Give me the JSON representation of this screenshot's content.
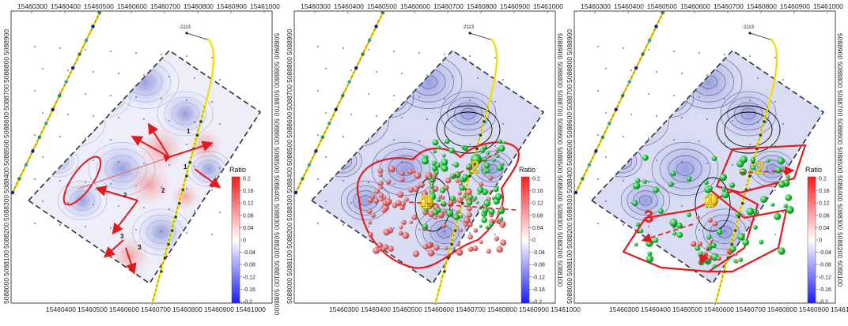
{
  "panels": [
    {
      "id": "left",
      "top_ticks": [
        "15460300",
        "15460400",
        "15460500",
        "15460600",
        "15460700",
        "15460800",
        "15460900",
        "15461000"
      ],
      "bottom_ticks": [
        "15460400",
        "15460500",
        "15460600",
        "15460700",
        "15460800",
        "15460900",
        "15461000"
      ],
      "left_ticks": [
        "5088900",
        "5088800",
        "5088700",
        "5088600",
        "5088500",
        "5088400",
        "5088300",
        "5088200",
        "5088100",
        "5088000"
      ],
      "right_ticks": [
        "5088900",
        "5088800",
        "5088700",
        "5088600",
        "5088500",
        "5088400",
        "5088300",
        "5088200",
        "5088100",
        "5088000"
      ],
      "well_label": "2113",
      "arrow_labels": [
        "1",
        "1",
        "2",
        "2",
        "3",
        "3"
      ],
      "zone_labels": []
    },
    {
      "id": "middle",
      "top_ticks": [
        "15460300",
        "15460400",
        "15460500",
        "15460600",
        "15460700",
        "15460800",
        "15460900",
        "15461000"
      ],
      "bottom_ticks": [
        "15460300",
        "15460400",
        "15460500",
        "15460600",
        "15460700",
        "15460800",
        "15460900",
        "15461000"
      ],
      "left_ticks": [
        "5088900",
        "5088800",
        "5088700",
        "5088600",
        "5088500",
        "5088400",
        "5088300",
        "5088200",
        "5088100",
        "5088000"
      ],
      "right_ticks": [
        "5088900",
        "5088800",
        "5088700",
        "5088600",
        "5088500",
        "5088400",
        "5088300",
        "5088200",
        "5088100"
      ],
      "well_label": "2113",
      "arrow_labels": [],
      "zone_labels": [
        "1",
        "2"
      ]
    },
    {
      "id": "right",
      "top_ticks": [
        "15460300",
        "15460400",
        "15460500",
        "15460600",
        "15460700",
        "15460800",
        "15460900",
        "15461000"
      ],
      "bottom_ticks": [
        "15460300",
        "15460400",
        "15460500",
        "15460600",
        "15460700",
        "15460800",
        "15460900",
        "15461000"
      ],
      "left_ticks": [
        "5088900",
        "5088800",
        "5088700",
        "5088600",
        "5088500",
        "5088400",
        "5088300",
        "5088200",
        "5088100",
        "5088000"
      ],
      "right_ticks": [
        "5088900",
        "5088800",
        "5088700",
        "5088600",
        "5088500",
        "5088400",
        "5088300",
        "5088200",
        "5088100"
      ],
      "well_label": "2113",
      "arrow_labels": [],
      "zone_labels": [
        "1",
        "2",
        "3"
      ]
    }
  ],
  "colorbar": {
    "title": "Ratio",
    "ticks": [
      "0.2",
      "0.16",
      "0.12",
      "0.08",
      "0.04",
      "0",
      "-0.04",
      "-0.08",
      "-0.12",
      "-0.16",
      "-0.2"
    ],
    "color_high": "#ff1a1a",
    "color_mid": "#ffffff",
    "color_low": "#1a1aff"
  },
  "colors": {
    "contour_positive": "#e9a9a9",
    "contour_negative": "#a9b2e6",
    "survey_boundary": "#333333",
    "wellbore": "#ffe600",
    "highlight_outline": "#e31a1c",
    "events_red": "#e06060",
    "events_green": "#20c040"
  }
}
